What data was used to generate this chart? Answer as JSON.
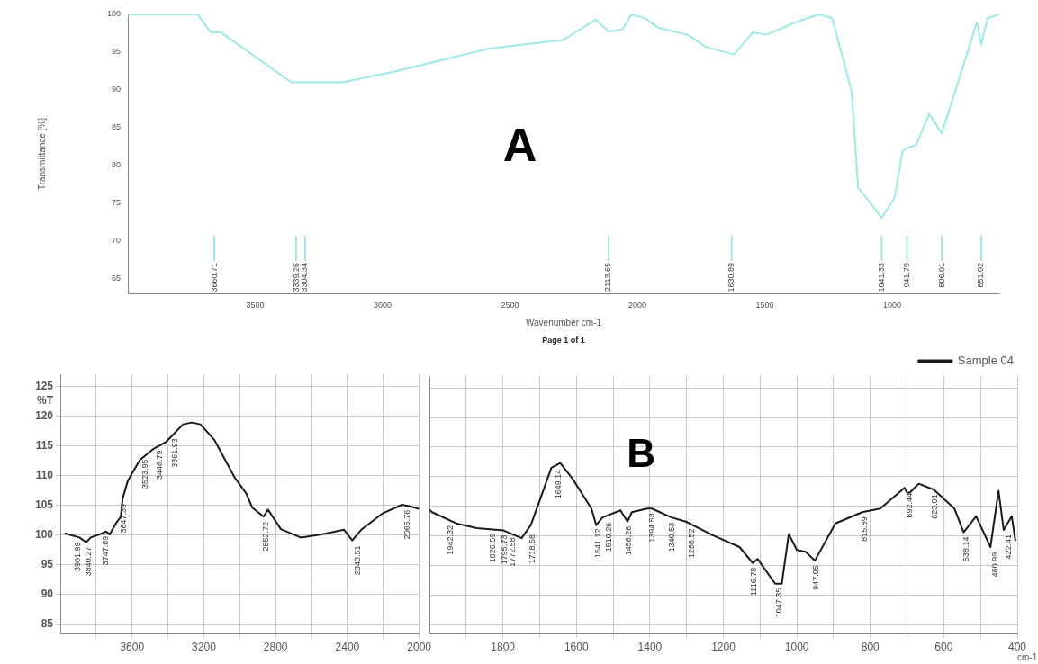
{
  "chart_data": [
    {
      "type": "line",
      "title": "A",
      "xlabel": "Wavenumber cm-1",
      "ylabel": "Transmittance [%]",
      "xlim": [
        4000,
        580
      ],
      "ylim": [
        63,
        100
      ],
      "xticks": [
        3500,
        3000,
        2500,
        2000,
        1500,
        1000
      ],
      "yticks": [
        65,
        70,
        75,
        80,
        85,
        90,
        95,
        100
      ],
      "grid": false,
      "marker": "none",
      "line_style": "solid",
      "series": [
        {
          "color": "#9ee8e8",
          "x": [
            4000,
            3726,
            3674,
            3660.71,
            3634,
            3359,
            3339.26,
            3304.34,
            3158,
            2967,
            2590,
            2448,
            2292,
            2165,
            2112,
            2060,
            2023,
            1971,
            1917,
            1803,
            1727,
            1621,
            1547,
            1494,
            1391,
            1289,
            1236,
            1159,
            1134,
            1095,
            1042,
            992,
            960,
            941.79,
            908,
            855,
            806,
            721,
            668,
            651,
            626,
            580
          ],
          "values": [
            100,
            100,
            97.6,
            97.6,
            97.6,
            91.0,
            91.0,
            91.0,
            91.0,
            92.3,
            95.4,
            96.0,
            96.6,
            99.3,
            97.7,
            98.0,
            100,
            99.5,
            98.2,
            97.3,
            95.6,
            94.7,
            97.6,
            97.3,
            98.8,
            100,
            99.5,
            89.7,
            77.0,
            75.4,
            73.0,
            75.6,
            81.8,
            82.3,
            82.6,
            86.8,
            84.2,
            93.2,
            99.0,
            96.0,
            99.5,
            100
          ]
        }
      ],
      "annotations": [
        "Page 1 of 1",
        {
          "text": "3660.71",
          "x": 3660.71
        },
        {
          "text": "3339.26",
          "x": 3339.26
        },
        {
          "text": "3304.34",
          "x": 3304.34
        },
        {
          "text": "2113.65",
          "x": 2113.65
        },
        {
          "text": "1630.89",
          "x": 1630.89
        },
        {
          "text": "1041.33",
          "x": 1041.33
        },
        {
          "text": "941.79",
          "x": 941.79
        },
        {
          "text": "806.01",
          "x": 806.01
        },
        {
          "text": "651.02",
          "x": 651.02
        }
      ]
    },
    {
      "type": "line",
      "ylabel": "%T",
      "xlim": [
        4000,
        2000
      ],
      "ylim": [
        83.5,
        127
      ],
      "xticks": [
        {
          "value": 3800,
          "label": null
        },
        3600,
        {
          "value": 3400,
          "label": null
        },
        3200,
        {
          "value": 3000,
          "label": null
        },
        2800,
        {
          "value": 2600,
          "label": null
        },
        2400,
        {
          "value": 2200,
          "label": null
        },
        2000
      ],
      "yticks": [
        85,
        90,
        95,
        100,
        105,
        110,
        115,
        120,
        125
      ],
      "grid": true,
      "marker": "none",
      "line_style": "solid",
      "series": [
        {
          "color": "#1a1a1a",
          "x": [
            3976,
            3894,
            3855,
            3831,
            3783,
            3745,
            3725,
            3687,
            3663,
            3653,
            3624,
            3557,
            3480,
            3412,
            3316,
            3267,
            3219,
            3142,
            3027,
            2964,
            2930,
            2867,
            2843,
            2771,
            2660,
            2545,
            2419,
            2373,
            2323,
            2207,
            2096,
            2048,
            2000
          ],
          "values": [
            100.3,
            99.6,
            98.8,
            99.6,
            100.1,
            100.6,
            100.1,
            102.1,
            103.1,
            106.1,
            109.1,
            112.6,
            114.5,
            115.6,
            118.6,
            118.9,
            118.6,
            116.0,
            109.6,
            107.0,
            104.6,
            103.1,
            104.3,
            101.0,
            99.6,
            100.1,
            100.9,
            99.1,
            100.9,
            103.6,
            105.1,
            104.8,
            104.4
          ]
        }
      ],
      "annotations": [
        {
          "text": "3901.99",
          "x": 3901.99,
          "y": 99.6
        },
        {
          "text": "3840.27",
          "x": 3840.27,
          "y": 98.8
        },
        {
          "text": "3747.69",
          "x": 3747.69,
          "y": 100.6
        },
        {
          "text": "3647.39",
          "x": 3647.39,
          "y": 106
        },
        {
          "text": "3523.95",
          "x": 3523.95,
          "y": 113.5
        },
        {
          "text": "3446.79",
          "x": 3446.79,
          "y": 115
        },
        {
          "text": "3361.93",
          "x": 3361.93,
          "y": 117
        },
        {
          "text": "2852.72",
          "x": 2852.72,
          "y": 103
        },
        {
          "text": "2343.51",
          "x": 2343.51,
          "y": 99
        },
        {
          "text": "2065.76",
          "x": 2065.76,
          "y": 105
        }
      ]
    },
    {
      "type": "line",
      "title": "B",
      "xlabel": "cm-1",
      "xlim": [
        2000,
        400
      ],
      "ylim": [
        83.5,
        127
      ],
      "xticks": [
        {
          "value": 1900,
          "label": null
        },
        1800,
        {
          "value": 1700,
          "label": null
        },
        1600,
        {
          "value": 1500,
          "label": null
        },
        1400,
        {
          "value": 1300,
          "label": null
        },
        1200,
        {
          "value": 1100,
          "label": null
        },
        1000,
        {
          "value": 900,
          "label": null
        },
        800,
        {
          "value": 700,
          "label": null
        },
        600,
        {
          "value": 500,
          "label": null
        },
        400
      ],
      "yticks": [
        85,
        90,
        95,
        100,
        105,
        110,
        115,
        120,
        125
      ],
      "tick_labels": "x",
      "grid": true,
      "legend": "top right",
      "marker": "none",
      "line_style": "solid",
      "series": [
        {
          "name": "Sample 04",
          "color": "#1a1a1a",
          "x": [
            2000,
            1993,
            1927,
            1871,
            1798,
            1749,
            1724,
            1668,
            1644,
            1610,
            1559,
            1546,
            1529,
            1480,
            1461,
            1449,
            1407,
            1394.53,
            1341,
            1302,
            1229,
            1156,
            1120,
            1107,
            1059,
            1041,
            1022,
            1000,
            976,
            951,
            895,
            822,
            773,
            707,
            700,
            692.44,
            668,
            627,
            571,
            546,
            512,
            473,
            451,
            437,
            415,
            405
          ],
          "values": [
            104.4,
            104.0,
            102.1,
            101.3,
            100.9,
            99.6,
            101.8,
            111.5,
            112.3,
            109.6,
            104.6,
            101.8,
            103.1,
            104.3,
            102.4,
            104.0,
            104.6,
            104.6,
            103.1,
            102.4,
            100.1,
            98.1,
            95.4,
            96.1,
            91.9,
            91.9,
            100.3,
            97.6,
            97.3,
            95.8,
            102.1,
            104.0,
            104.6,
            108.1,
            107.3,
            107.3,
            108.8,
            107.8,
            104.6,
            100.6,
            103.3,
            98.1,
            107.6,
            101.0,
            103.3,
            99.1
          ]
        }
      ],
      "annotations": [
        {
          "text": "1942.32",
          "x": 1942.32,
          "y": 102.5
        },
        {
          "text": "1826.59",
          "x": 1826.59,
          "y": 101.2
        },
        {
          "text": "1795.73",
          "x": 1795.73,
          "y": 100.9
        },
        {
          "text": "1772.58",
          "x": 1772.58,
          "y": 100.5
        },
        {
          "text": "1718.58",
          "x": 1718.58,
          "y": 101
        },
        {
          "text": "1649.14",
          "x": 1649.14,
          "y": 112
        },
        {
          "text": "1541.12",
          "x": 1541.12,
          "y": 102
        },
        {
          "text": "1510.26",
          "x": 1510.26,
          "y": 103
        },
        {
          "text": "1456.26",
          "x": 1456.26,
          "y": 102.4
        },
        {
          "text": "1394.53",
          "x": 1394.53,
          "y": 104.6
        },
        {
          "text": "1340.53",
          "x": 1340.53,
          "y": 103
        },
        {
          "text": "1286.52",
          "x": 1286.52,
          "y": 102
        },
        {
          "text": "1116.78",
          "x": 1116.78,
          "y": 95.4
        },
        {
          "text": "1047.35",
          "x": 1047.35,
          "y": 91.9
        },
        {
          "text": "947.05",
          "x": 947.05,
          "y": 95.8
        },
        {
          "text": "815.89",
          "x": 815.89,
          "y": 104
        },
        {
          "text": "692.44",
          "x": 692.44,
          "y": 108
        },
        {
          "text": "623.01",
          "x": 623.01,
          "y": 107.8
        },
        {
          "text": "538.14",
          "x": 538.14,
          "y": 100.6
        },
        {
          "text": "460.99",
          "x": 460.99,
          "y": 98
        },
        {
          "text": "422.41",
          "x": 422.41,
          "y": 101
        }
      ]
    }
  ]
}
